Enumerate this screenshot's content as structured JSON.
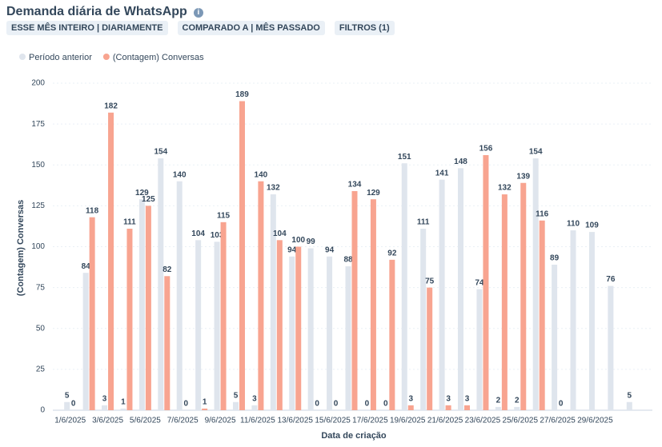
{
  "filters": [
    "ESSE MÊS INTEIRO | DIARIAMENTE",
    "COMPARADO A | MÊS PASSADO",
    "FILTROS (1)"
  ],
  "chart_data": {
    "type": "bar",
    "title": "Demanda diária de WhatsApp",
    "x_label": "Data de criação",
    "y_label": "(Contagem) Conversas",
    "categories": [
      "1/6/2025",
      null,
      "3/6/2025",
      null,
      "5/6/2025",
      null,
      "7/6/2025",
      null,
      "9/6/2025",
      null,
      "11/6/2025",
      null,
      "13/6/2025",
      null,
      "15/6/2025",
      null,
      "17/6/2025",
      null,
      "19/6/2025",
      null,
      "21/6/2025",
      null,
      "23/6/2025",
      null,
      "25/6/2025",
      null,
      "27/6/2025",
      null,
      "29/6/2025",
      null,
      null
    ],
    "series": [
      {
        "name": "Período anterior",
        "color": "#dfe5ed",
        "values": [
          5,
          84,
          3,
          1,
          129,
          154,
          140,
          104,
          103,
          5,
          3,
          132,
          94,
          99,
          94,
          88,
          0,
          0,
          151,
          111,
          141,
          148,
          74,
          2,
          2,
          154,
          89,
          110,
          109,
          76,
          5
        ]
      },
      {
        "name": "(Contagem) Conversas",
        "color": "#f8a490",
        "values": [
          0,
          118,
          182,
          111,
          125,
          82,
          0,
          1,
          115,
          189,
          140,
          104,
          100,
          0,
          0,
          134,
          129,
          92,
          3,
          75,
          3,
          3,
          156,
          132,
          139,
          116,
          0,
          null,
          null,
          null,
          null
        ]
      }
    ],
    "ylim": [
      0,
      200
    ],
    "yticks": [
      0,
      25,
      50,
      75,
      100,
      125,
      150,
      175,
      200
    ],
    "grid": true,
    "legend": "top-left"
  }
}
